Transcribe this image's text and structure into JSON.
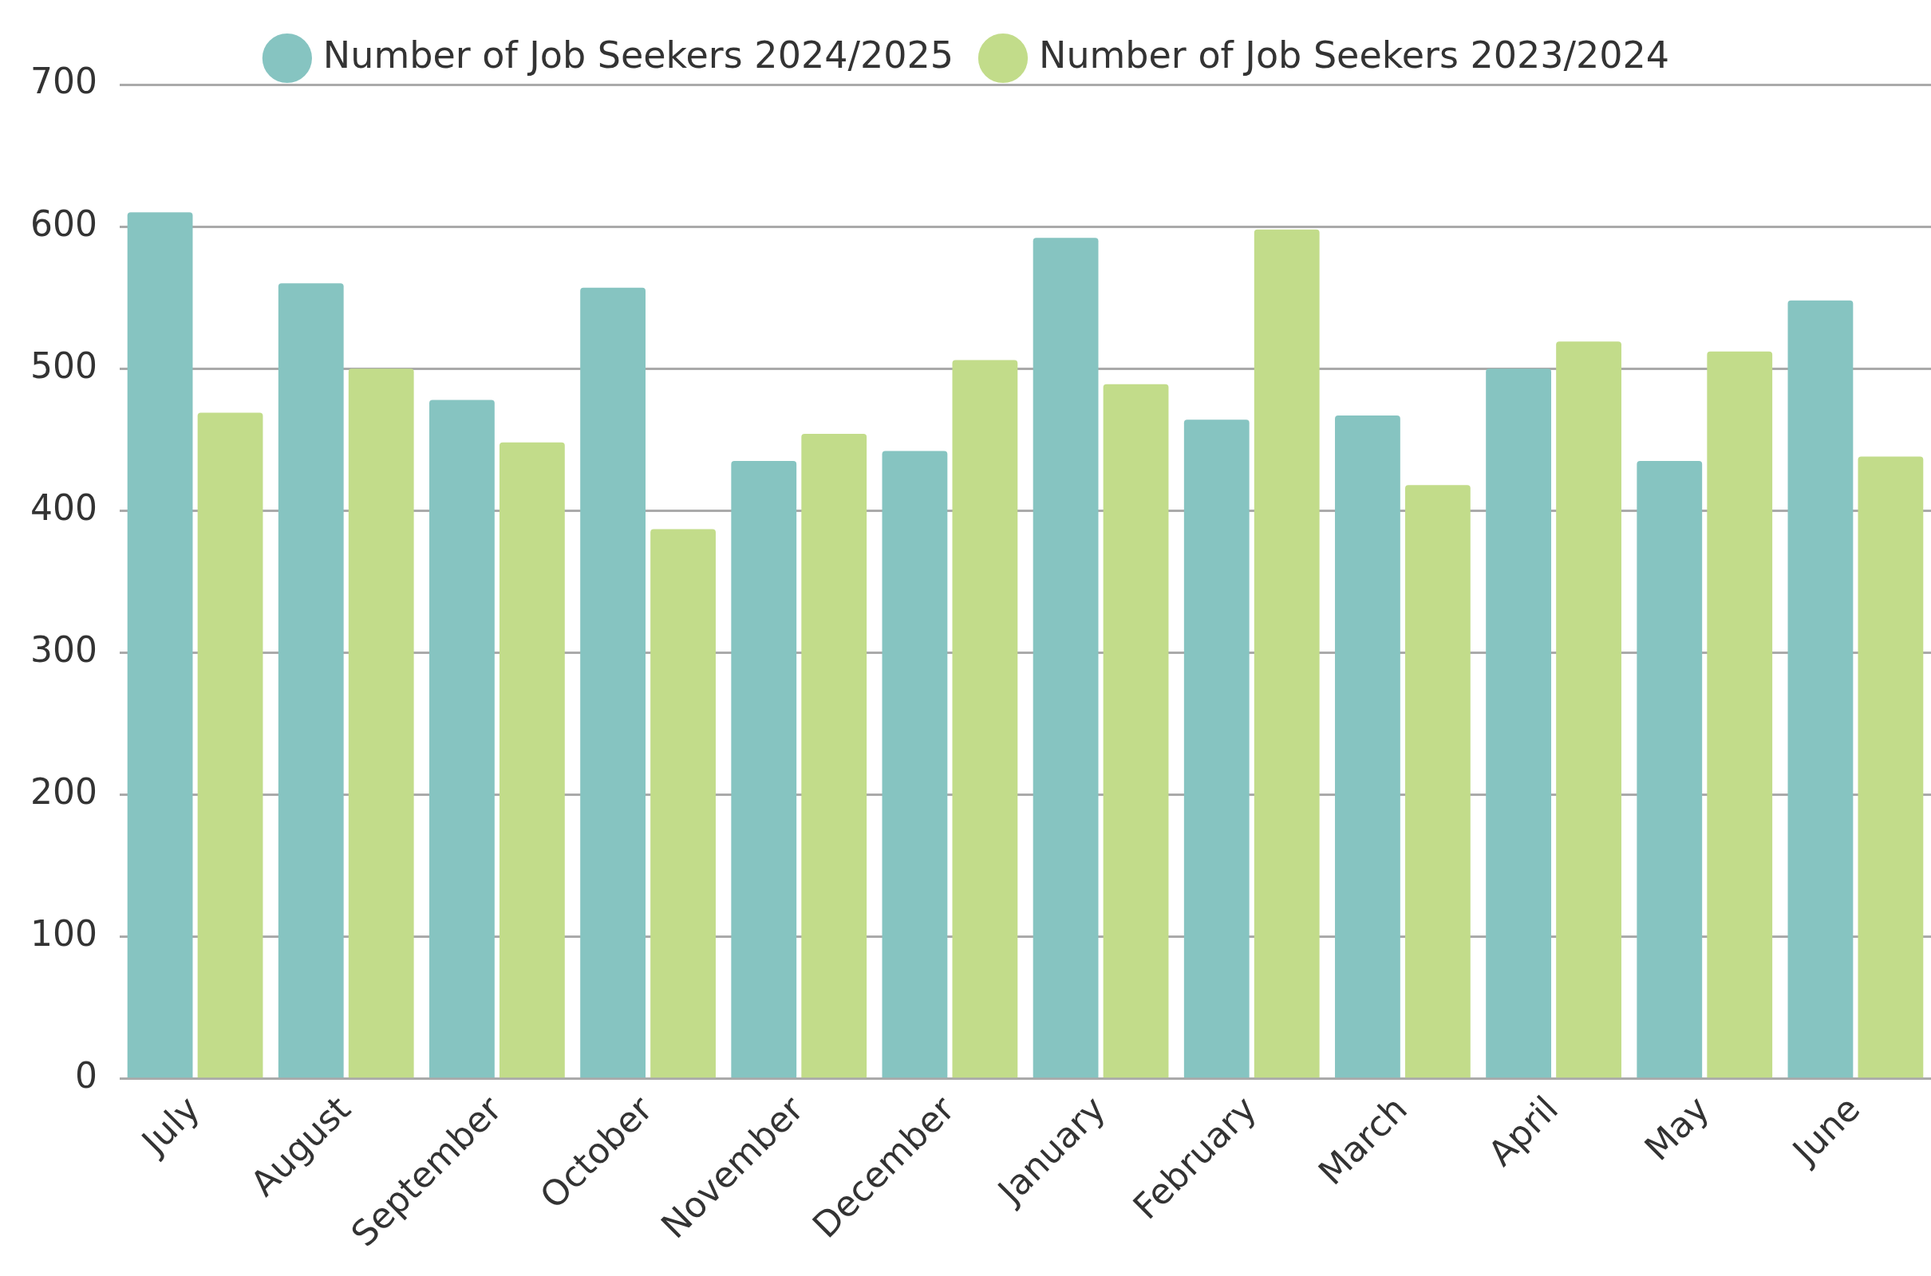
{
  "chart_data": {
    "type": "bar",
    "categories": [
      "July",
      "August",
      "September",
      "October",
      "November",
      "December",
      "January",
      "February",
      "March",
      "April",
      "May",
      "June"
    ],
    "series": [
      {
        "name": "Number of Job Seekers 2024/2025",
        "color": "#86c4c1",
        "values": [
          610,
          560,
          478,
          557,
          435,
          442,
          592,
          464,
          467,
          500,
          435,
          548
        ]
      },
      {
        "name": "Number of Job Seekers 2023/2024",
        "color": "#c2dc8a",
        "values": [
          469,
          500,
          448,
          387,
          454,
          506,
          489,
          598,
          418,
          519,
          512,
          438
        ]
      }
    ],
    "ylim": [
      0,
      700
    ],
    "yticks": [
      0,
      100,
      200,
      300,
      400,
      500,
      600,
      700
    ],
    "grid": "y",
    "legend": "top"
  }
}
